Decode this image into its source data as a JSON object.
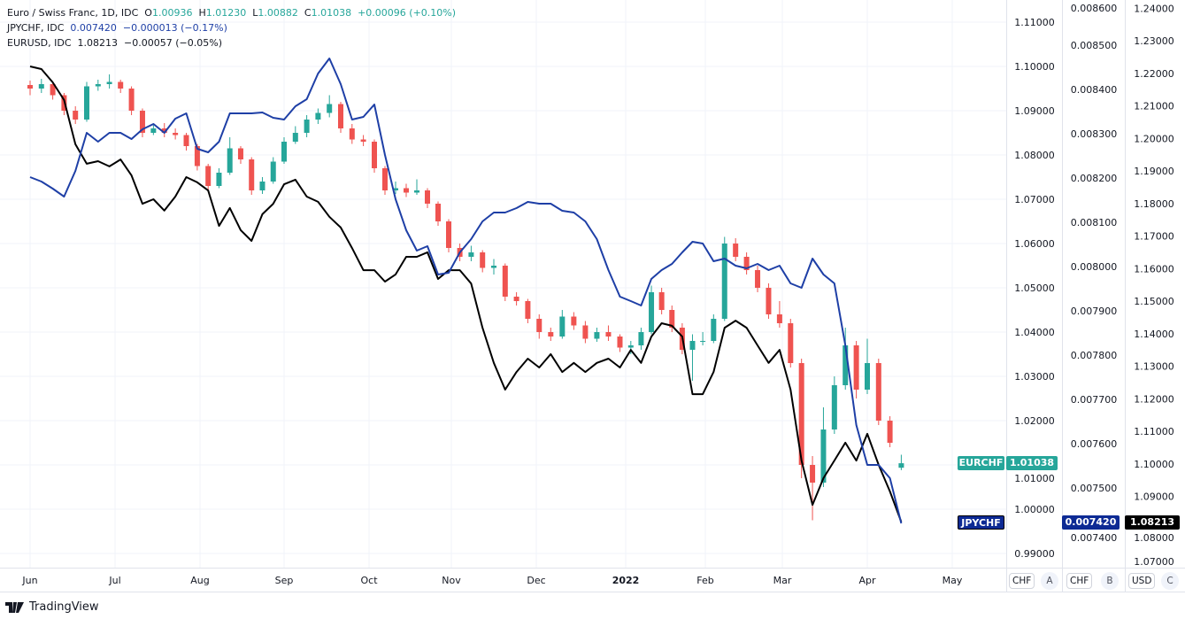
{
  "legend": {
    "eurchf": {
      "name": "Euro / Swiss Franc, 1D, IDC",
      "o_label": "O",
      "o": "1.00936",
      "h_label": "H",
      "h": "1.01230",
      "l_label": "L",
      "l": "1.00882",
      "c_label": "C",
      "c": "1.01038",
      "change": "+0.00096 (+0.10%)"
    },
    "jpychf": {
      "name": "JPYCHF, IDC",
      "value": "0.007420",
      "change": "−0.000013 (−0.17%)"
    },
    "eurusd": {
      "name": "EURUSD, IDC",
      "value": "1.08213",
      "change": "−0.00057 (−0.05%)"
    }
  },
  "scales": {
    "a": {
      "currency": "CHF",
      "letter": "A",
      "ticks": [
        "1.11000",
        "1.10000",
        "1.09000",
        "1.08000",
        "1.07000",
        "1.06000",
        "1.05000",
        "1.04000",
        "1.03000",
        "1.02000",
        "1.01000",
        "1.00000",
        "0.99000"
      ]
    },
    "b": {
      "currency": "CHF",
      "letter": "B",
      "ticks": [
        "0.008600",
        "0.008500",
        "0.008400",
        "0.008300",
        "0.008200",
        "0.008100",
        "0.008000",
        "0.007900",
        "0.007800",
        "0.007700",
        "0.007600",
        "0.007500",
        "0.007400"
      ]
    },
    "c": {
      "currency": "USD",
      "letter": "C",
      "ticks": [
        "1.24000",
        "1.23000",
        "1.22000",
        "1.21000",
        "1.20000",
        "1.19000",
        "1.18000",
        "1.17000",
        "1.16000",
        "1.15000",
        "1.14000",
        "1.13000",
        "1.12000",
        "1.11000",
        "1.10000",
        "1.09000",
        "1.08000",
        "1.07000"
      ]
    }
  },
  "price_tags": {
    "eurchf": {
      "label": "EURCHF",
      "value": "1.01038",
      "color": "#26a69a"
    },
    "jpychf": {
      "label": "JPYCHF",
      "value": "0.007420",
      "color": "#0d2a94"
    },
    "eurusd": {
      "value": "1.08213",
      "color": "#000000"
    }
  },
  "time_axis": [
    "Jun",
    "Jul",
    "Aug",
    "Sep",
    "Oct",
    "Nov",
    "Dec",
    "2022",
    "Feb",
    "Mar",
    "Apr",
    "May"
  ],
  "footer": {
    "brand": "TradingView"
  },
  "chart_data": {
    "type": "candlestick+line",
    "colors": {
      "up": "#26a69a",
      "down": "#ef5350",
      "jpychf": "#1e3fa6",
      "eurusd": "#000000"
    },
    "grid": true,
    "series": [
      {
        "name": "EURCHF",
        "type": "candlestick",
        "scale": "A",
        "columns": [
          "date",
          "open",
          "high",
          "low",
          "close"
        ]
      },
      {
        "name": "JPYCHF",
        "type": "line",
        "scale": "B"
      },
      {
        "name": "EURUSD",
        "type": "line",
        "scale": "C"
      }
    ],
    "rows_columns": [
      "date",
      "eurchf_open",
      "eurchf_high",
      "eurchf_low",
      "eurchf_close",
      "jpychf",
      "eurusd"
    ],
    "rows": [
      [
        "2021-06-01",
        1.0958,
        1.0968,
        1.0935,
        1.095,
        0.008202,
        1.2221
      ],
      [
        "2021-06-05",
        1.095,
        1.0972,
        1.094,
        1.096,
        0.008192,
        1.2213
      ],
      [
        "2021-06-09",
        1.096,
        1.0965,
        1.0925,
        1.0935,
        0.008176,
        1.2172
      ],
      [
        "2021-06-13",
        1.0935,
        1.094,
        1.089,
        1.09,
        0.008158,
        1.2118
      ],
      [
        "2021-06-17",
        1.09,
        1.091,
        1.087,
        1.088,
        0.008216,
        1.1982
      ],
      [
        "2021-06-21",
        1.088,
        1.0965,
        1.0875,
        1.0955,
        0.008302,
        1.1922
      ],
      [
        "2021-06-25",
        1.0955,
        1.097,
        1.0945,
        1.096,
        0.008282,
        1.193
      ],
      [
        "2021-06-29",
        1.096,
        1.0982,
        1.095,
        1.0965,
        0.008302,
        1.1914
      ],
      [
        "2021-07-03",
        1.0965,
        1.097,
        1.094,
        1.095,
        0.008302,
        1.1935
      ],
      [
        "2021-07-07",
        1.095,
        1.0955,
        1.089,
        1.09,
        0.008288,
        1.1886
      ],
      [
        "2021-07-11",
        1.09,
        1.0905,
        1.084,
        1.085,
        0.00831,
        1.1799
      ],
      [
        "2021-07-15",
        1.085,
        1.087,
        1.0845,
        1.086,
        0.008322,
        1.1813
      ],
      [
        "2021-07-19",
        1.086,
        1.0872,
        1.084,
        1.085,
        0.008302,
        1.1778
      ],
      [
        "2021-07-23",
        1.085,
        1.086,
        1.0835,
        1.0845,
        0.008334,
        1.1821
      ],
      [
        "2021-07-27",
        1.0845,
        1.085,
        1.081,
        1.082,
        0.008346,
        1.1881
      ],
      [
        "2021-07-31",
        1.082,
        1.0825,
        1.0765,
        1.0775,
        0.008266,
        1.1865
      ],
      [
        "2021-08-04",
        1.0775,
        1.078,
        1.072,
        1.073,
        0.008258,
        1.184
      ],
      [
        "2021-08-08",
        1.073,
        1.077,
        1.0725,
        1.076,
        0.008282,
        1.1731
      ],
      [
        "2021-08-12",
        1.076,
        1.084,
        1.0755,
        1.0815,
        0.008346,
        1.1786
      ],
      [
        "2021-08-16",
        1.0815,
        1.082,
        1.078,
        1.079,
        0.008346,
        1.1718
      ],
      [
        "2021-08-20",
        1.079,
        1.0795,
        1.071,
        1.072,
        0.008346,
        1.1685
      ],
      [
        "2021-08-24",
        1.072,
        1.075,
        1.0712,
        1.074,
        0.008348,
        1.1767
      ],
      [
        "2021-08-28",
        1.074,
        1.0795,
        1.0735,
        1.0785,
        0.008336,
        1.1799
      ],
      [
        "2021-09-01",
        1.0785,
        1.084,
        1.078,
        1.083,
        0.008332,
        1.1859
      ],
      [
        "2021-09-05",
        1.083,
        1.0865,
        1.0825,
        1.085,
        0.008362,
        1.1873
      ],
      [
        "2021-09-09",
        1.085,
        1.089,
        1.084,
        1.088,
        0.008378,
        1.1821
      ],
      [
        "2021-09-13",
        1.088,
        1.0905,
        1.087,
        1.0895,
        0.008436,
        1.1805
      ],
      [
        "2021-09-17",
        1.0895,
        1.0935,
        1.0885,
        1.0915,
        0.00847,
        1.1759
      ],
      [
        "2021-09-21",
        1.0915,
        1.092,
        1.085,
        1.086,
        0.008412,
        1.1726
      ],
      [
        "2021-09-25",
        1.086,
        1.087,
        1.0825,
        1.0835,
        0.008332,
        1.1663
      ],
      [
        "2021-09-29",
        1.0835,
        1.0845,
        1.082,
        1.083,
        0.008338,
        1.1595
      ],
      [
        "2021-10-03",
        1.083,
        1.0835,
        1.076,
        1.077,
        0.008366,
        1.1595
      ],
      [
        "2021-10-07",
        1.077,
        1.0775,
        1.071,
        1.072,
        0.008252,
        1.156
      ],
      [
        "2021-10-11",
        1.072,
        1.074,
        1.0712,
        1.0725,
        0.008152,
        1.1582
      ],
      [
        "2021-10-15",
        1.0725,
        1.0735,
        1.0705,
        1.0715,
        0.008082,
        1.1636
      ],
      [
        "2021-10-19",
        1.0715,
        1.0745,
        1.071,
        1.072,
        0.008036,
        1.1636
      ],
      [
        "2021-10-23",
        1.072,
        1.0725,
        1.068,
        1.069,
        0.008046,
        1.165
      ],
      [
        "2021-10-27",
        1.069,
        1.0695,
        1.064,
        1.065,
        0.007982,
        1.1568
      ],
      [
        "2021-10-31",
        1.065,
        1.0655,
        1.058,
        1.059,
        0.007986,
        1.1595
      ],
      [
        "2021-11-04",
        1.059,
        1.06,
        1.056,
        1.057,
        0.008032,
        1.1595
      ],
      [
        "2021-11-08",
        1.057,
        1.0595,
        1.056,
        1.058,
        0.008062,
        1.1554
      ],
      [
        "2021-11-12",
        1.058,
        1.0585,
        1.0535,
        1.0545,
        0.008102,
        1.1418
      ],
      [
        "2021-11-16",
        1.0545,
        1.0565,
        1.053,
        1.055,
        0.008122,
        1.131
      ],
      [
        "2021-11-20",
        1.055,
        1.0555,
        1.047,
        1.048,
        0.008122,
        1.1228
      ],
      [
        "2021-11-24",
        1.048,
        1.049,
        1.046,
        1.047,
        0.008132,
        1.1282
      ],
      [
        "2021-11-28",
        1.047,
        1.0475,
        1.042,
        1.043,
        0.008146,
        1.1323
      ],
      [
        "2021-12-02",
        1.043,
        1.044,
        1.0385,
        1.04,
        0.008142,
        1.1296
      ],
      [
        "2021-12-06",
        1.04,
        1.041,
        1.038,
        1.039,
        0.008142,
        1.1337
      ],
      [
        "2021-12-10",
        1.039,
        1.045,
        1.0385,
        1.0435,
        0.008126,
        1.1282
      ],
      [
        "2021-12-14",
        1.0435,
        1.0445,
        1.0405,
        1.0415,
        0.008122,
        1.131
      ],
      [
        "2021-12-18",
        1.0415,
        1.0425,
        1.0375,
        1.0385,
        0.008102,
        1.1282
      ],
      [
        "2021-12-22",
        1.0385,
        1.041,
        1.0378,
        1.04,
        0.008062,
        1.131
      ],
      [
        "2021-12-26",
        1.04,
        1.0415,
        1.038,
        1.039,
        0.007992,
        1.1323
      ],
      [
        "2021-12-30",
        1.039,
        1.0395,
        1.0355,
        1.0365,
        0.007932,
        1.1296
      ],
      [
        "2022-01-03",
        1.0365,
        1.038,
        1.035,
        1.037,
        0.007922,
        1.135
      ],
      [
        "2022-01-07",
        1.037,
        1.041,
        1.036,
        1.04,
        0.007912,
        1.131
      ],
      [
        "2022-01-11",
        1.04,
        1.0505,
        1.0395,
        1.049,
        0.007972,
        1.1391
      ],
      [
        "2022-01-15",
        1.049,
        1.05,
        1.044,
        1.045,
        0.007992,
        1.1432
      ],
      [
        "2022-01-19",
        1.045,
        1.046,
        1.04,
        1.041,
        0.008006,
        1.1424
      ],
      [
        "2022-01-23",
        1.041,
        1.042,
        1.035,
        1.036,
        0.008032,
        1.1391
      ],
      [
        "2022-01-27",
        1.036,
        1.0395,
        1.029,
        1.038,
        0.008056,
        1.1214
      ],
      [
        "2022-01-31",
        1.038,
        1.04,
        1.037,
        1.038,
        0.008052,
        1.1214
      ],
      [
        "2022-02-04",
        1.038,
        1.044,
        1.0375,
        1.043,
        0.008012,
        1.1282
      ],
      [
        "2022-02-08",
        1.043,
        1.0615,
        1.0425,
        1.06,
        0.008018,
        1.1418
      ],
      [
        "2022-02-12",
        1.06,
        1.0612,
        1.056,
        1.057,
        0.008002,
        1.144
      ],
      [
        "2022-02-16",
        1.057,
        1.058,
        1.053,
        1.054,
        0.007996,
        1.1418
      ],
      [
        "2022-02-20",
        1.054,
        1.055,
        1.049,
        1.05,
        0.008006,
        1.1364
      ],
      [
        "2022-02-24",
        1.05,
        1.051,
        1.043,
        1.044,
        0.007992,
        1.131
      ],
      [
        "2022-02-28",
        1.044,
        1.047,
        1.041,
        1.042,
        0.008002,
        1.135
      ],
      [
        "2022-03-04",
        1.042,
        1.043,
        1.032,
        1.033,
        0.007962,
        1.1228
      ],
      [
        "2022-03-08",
        1.033,
        1.034,
        1.007,
        1.01,
        0.007952,
        1.101
      ],
      [
        "2022-03-12",
        1.01,
        1.012,
        0.9975,
        1.006,
        0.008018,
        1.0874
      ],
      [
        "2022-03-16",
        1.006,
        1.023,
        1.005,
        1.018,
        0.007982,
        1.0956
      ],
      [
        "2022-03-20",
        1.018,
        1.03,
        1.017,
        1.028,
        0.007962,
        1.101
      ],
      [
        "2022-03-24",
        1.028,
        1.041,
        1.027,
        1.037,
        0.007822,
        1.1065
      ],
      [
        "2022-03-28",
        1.037,
        1.038,
        1.025,
        1.027,
        0.007642,
        1.101
      ],
      [
        "2022-04-01",
        1.027,
        1.0385,
        1.026,
        1.033,
        0.007552,
        1.1092
      ],
      [
        "2022-04-05",
        1.033,
        1.034,
        1.019,
        1.02,
        0.007552,
        1.0997
      ],
      [
        "2022-04-09",
        1.02,
        1.021,
        1.014,
        1.015,
        0.007522,
        1.0915
      ],
      [
        "2022-04-13",
        1.00936,
        1.0123,
        1.00882,
        1.01038,
        0.00742,
        1.08213
      ]
    ]
  }
}
